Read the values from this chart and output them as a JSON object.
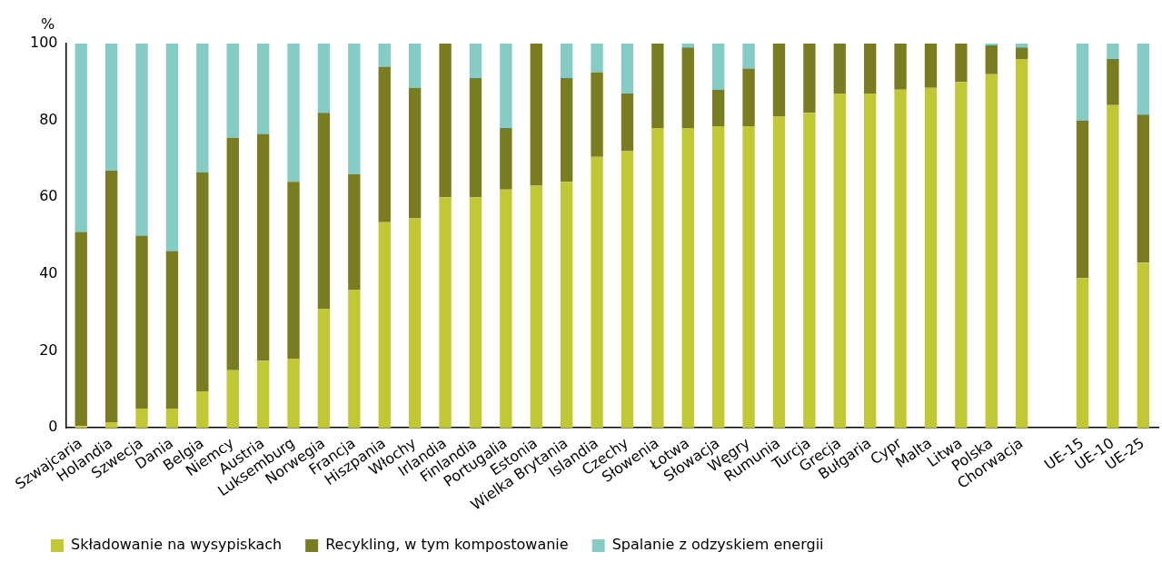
{
  "chart_data": {
    "type": "bar",
    "stacked": true,
    "ylabel": "%",
    "ylim": [
      0,
      100
    ],
    "yticks": [
      0,
      20,
      40,
      60,
      80,
      100
    ],
    "grid": false,
    "legend": "bottom",
    "categories": [
      "Szwajcaria",
      "Holandia",
      "Szwecja",
      "Dania",
      "Belgia",
      "Niemcy",
      "Austria",
      "Luksemburg",
      "Norwegia",
      "Francja",
      "Hiszpania",
      "Włochy",
      "Irlandia",
      "Finlandia",
      "Portugalia",
      "Estonia",
      "Wielka Brytania",
      "Islandia",
      "Czechy",
      "Słowenia",
      "Łotwa",
      "Słowacja",
      "Węgry",
      "Rumunia",
      "Turcja",
      "Grecja",
      "Bułgaria",
      "Cypr",
      "Malta",
      "Litwa",
      "Polska",
      "Chorwacja",
      null,
      "UE-15",
      "UE-10",
      "UE-25"
    ],
    "series": [
      {
        "name": "Składowanie na wysypiskach",
        "color": "#c0c934",
        "values": [
          0.5,
          1.5,
          5,
          5,
          9.5,
          15,
          17.5,
          18,
          31,
          36,
          53.5,
          54.5,
          60,
          60,
          62,
          63,
          64,
          70.5,
          72,
          78,
          78,
          78.5,
          78.5,
          81,
          82,
          87,
          87,
          88,
          88.5,
          90,
          92,
          96,
          null,
          39,
          84,
          43
        ]
      },
      {
        "name": "Recykling, w tym kompostowanie",
        "color": "#7a7d1f",
        "values": [
          50.5,
          65.5,
          45,
          41,
          57,
          60.5,
          59,
          46,
          51,
          30,
          40.5,
          34,
          40,
          31,
          16,
          37,
          27,
          22,
          15,
          22,
          21,
          9.5,
          15,
          19,
          18,
          13,
          13,
          12,
          11.5,
          10,
          7.5,
          3,
          null,
          41,
          12,
          38.5
        ]
      },
      {
        "name": "Spalanie z odzyskiem energii",
        "color": "#85ccc4",
        "values": [
          49,
          33,
          50,
          54,
          33.5,
          24.5,
          23.5,
          36,
          18,
          34,
          6,
          11.5,
          0,
          9,
          22,
          0,
          9,
          7.5,
          13,
          0,
          1,
          12,
          6.5,
          0,
          0,
          0,
          0,
          0,
          0,
          0,
          0.5,
          1,
          null,
          20,
          4,
          18.5
        ]
      }
    ]
  }
}
